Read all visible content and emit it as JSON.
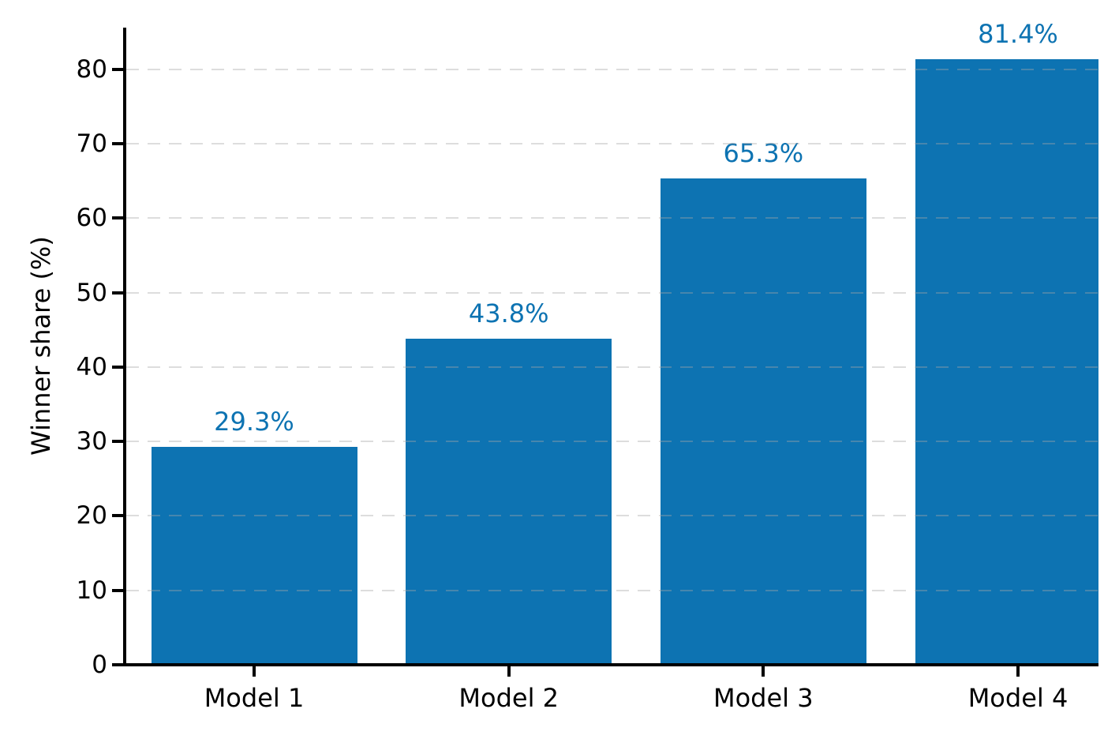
{
  "chart_data": {
    "type": "bar",
    "title": "",
    "ylabel": "Winner share (%)",
    "xlabel": "",
    "categories": [
      "Model 1",
      "Model 2",
      "Model 3",
      "Model 4"
    ],
    "values": [
      29.3,
      43.8,
      65.3,
      81.4
    ],
    "value_labels": [
      "29.3%",
      "43.8%",
      "65.3%",
      "81.4%"
    ],
    "yticks": [
      0,
      10,
      20,
      30,
      40,
      50,
      60,
      70,
      80
    ],
    "ylim": [
      0,
      85.6
    ],
    "grid": true,
    "grid_style": "dashed",
    "legend": "none",
    "bar_color": "#0d73b2",
    "value_label_color": "#0d73b2",
    "axis_color": "#000000",
    "grid_color": "#ececec"
  }
}
